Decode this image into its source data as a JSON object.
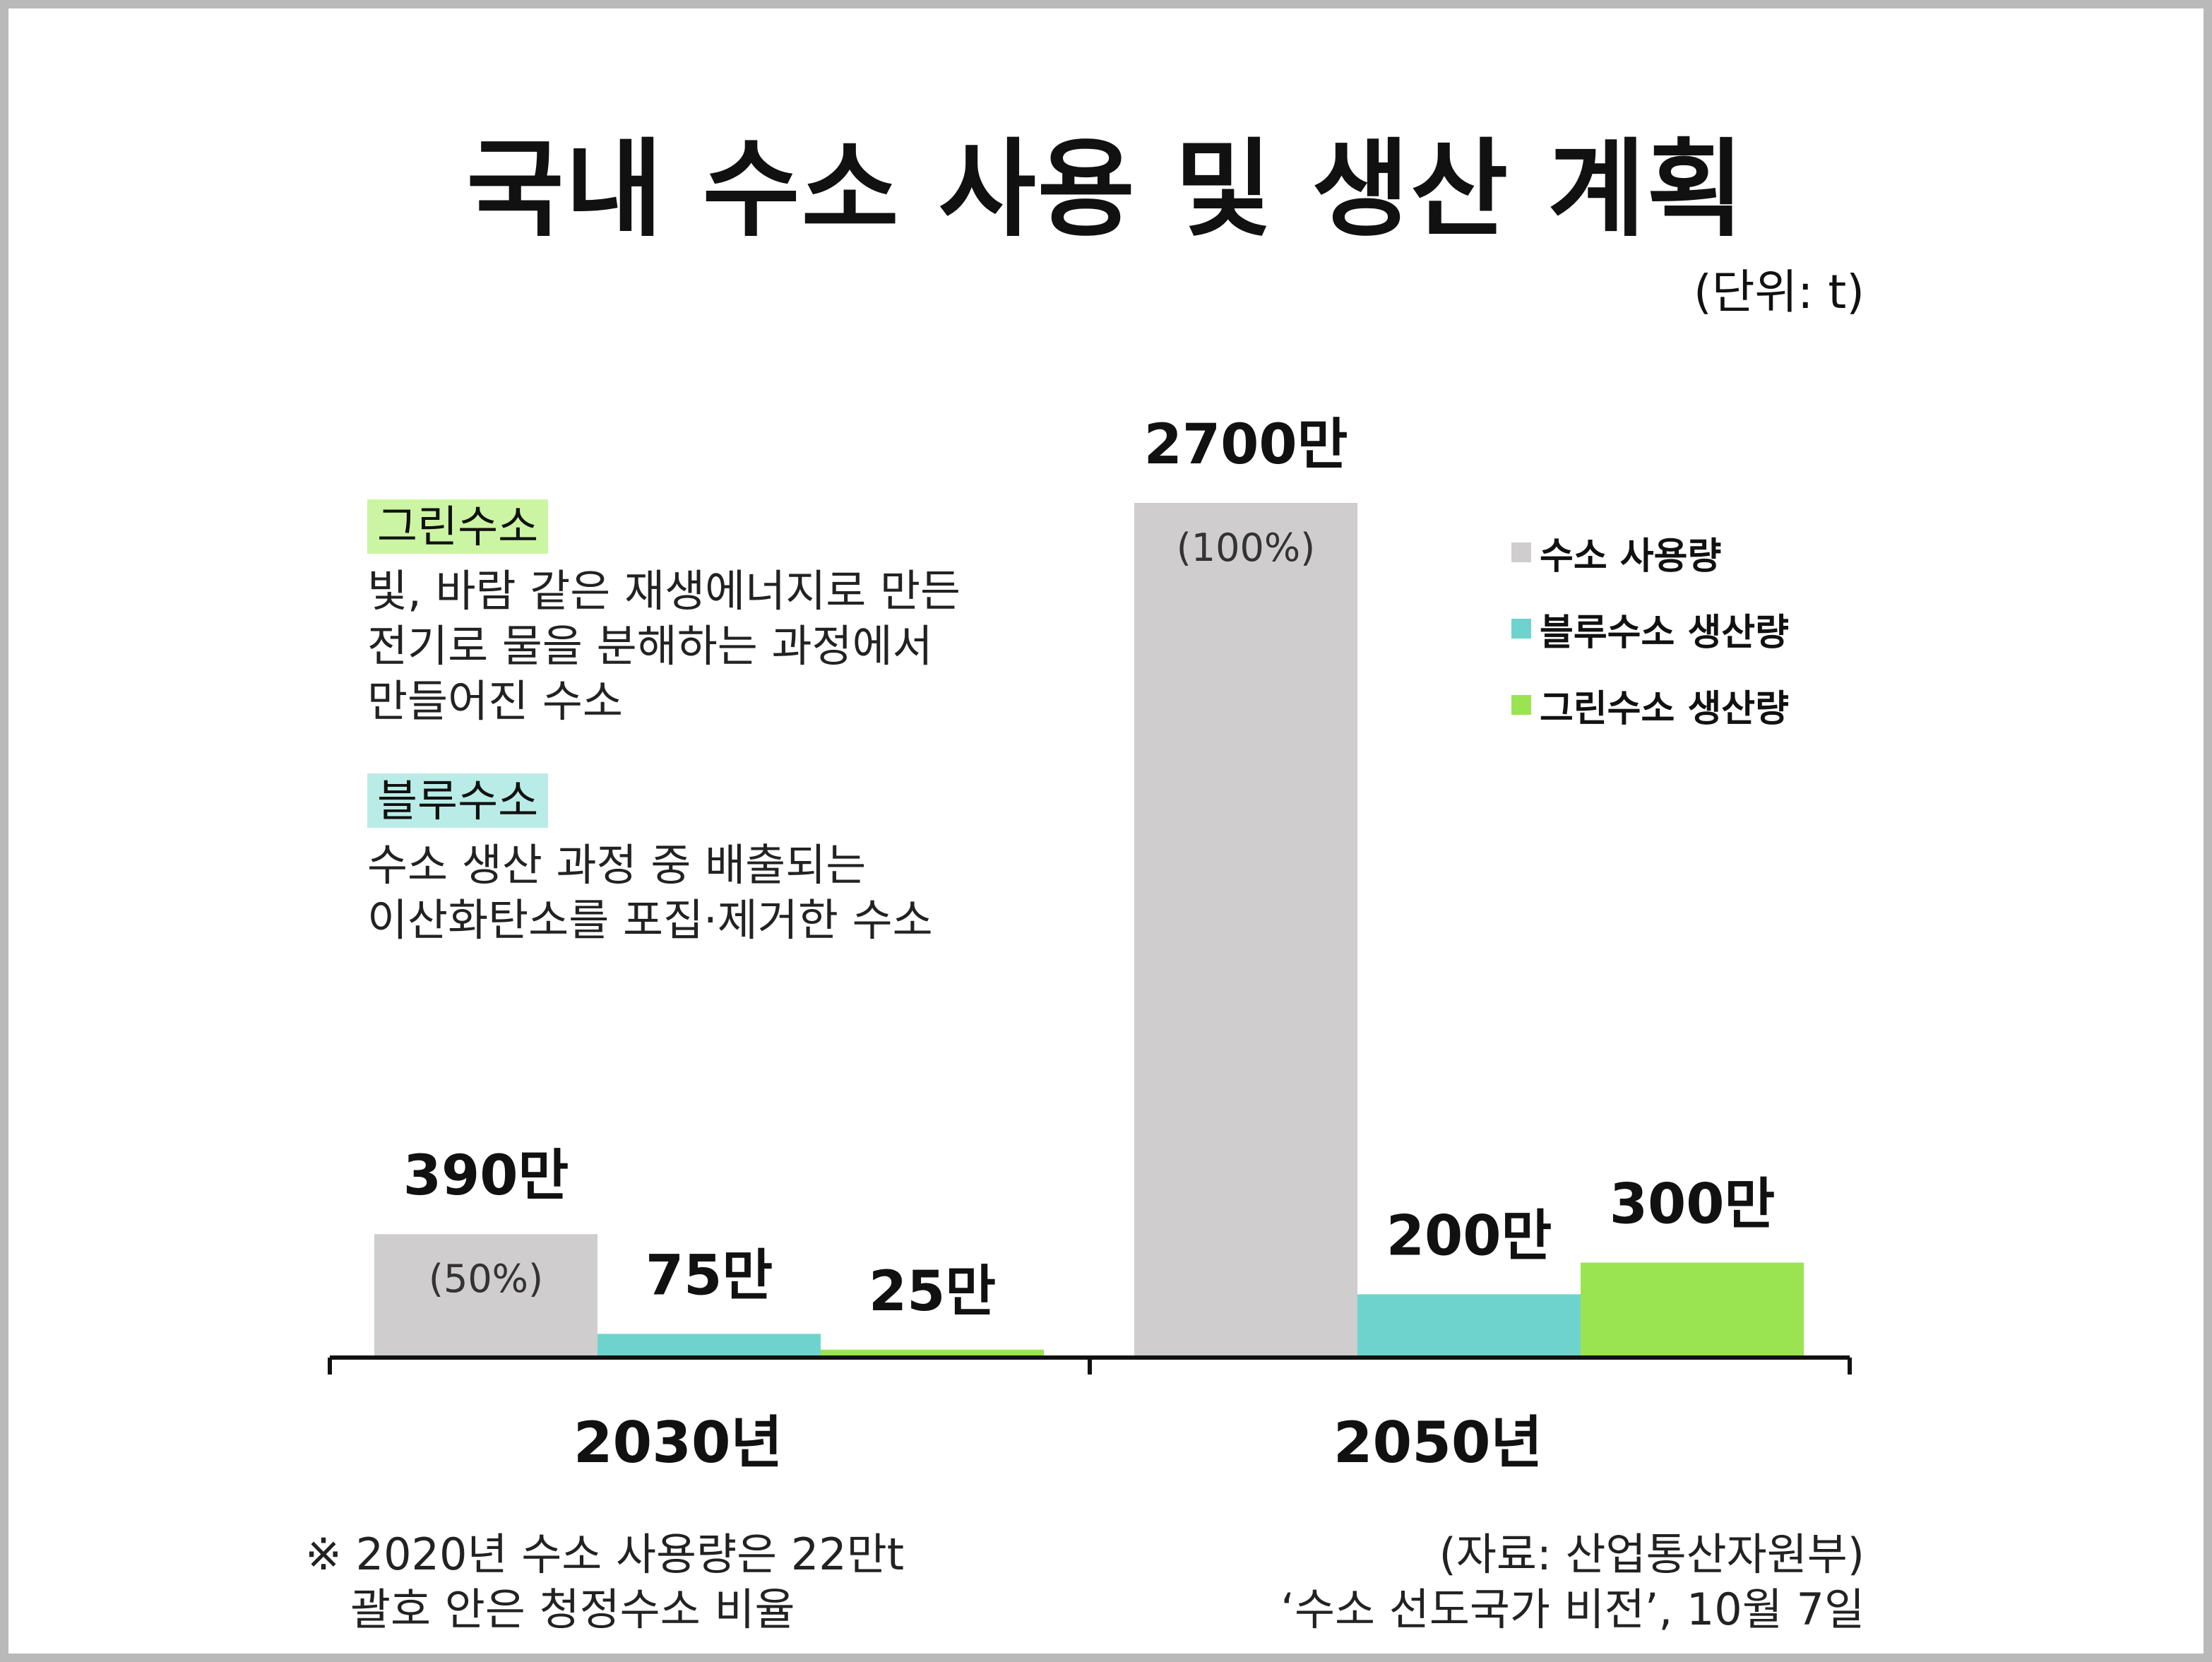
{
  "title": "국내 수소 사용 및 생산 계획",
  "unit": "(단위: t)",
  "notes": [
    {
      "tag": "그린수소",
      "tag_color": "#ccf5a3",
      "lines": [
        "빛, 바람 같은 재생에너지로 만든",
        "전기로 물을 분해하는 과정에서",
        "만들어진 수소"
      ]
    },
    {
      "tag": "블루수소",
      "tag_color": "#b9ece6",
      "lines": [
        "수소 생산 과정 중 배출되는",
        "이산화탄소를 포집·제거한 수소"
      ]
    }
  ],
  "footnote": {
    "lines": [
      "※ 2020년 수소 사용량은 22만t",
      "괄호 안은 청정수소 비율"
    ]
  },
  "source": {
    "lines": [
      "(자료: 산업통산자원부)",
      "‘수소 선도국가 비전’, 10월 7일"
    ]
  },
  "chart_data": {
    "type": "bar",
    "categories": [
      "2030년",
      "2050년"
    ],
    "series": [
      {
        "name": "수소 사용량",
        "color": "#cfcdce",
        "values": [
          3900000,
          27000000
        ],
        "value_labels": [
          "390만",
          "2700만"
        ],
        "inner_labels": [
          "(50%)",
          "(100%)"
        ]
      },
      {
        "name": "블루수소 생산량",
        "color": "#6fd3cd",
        "values": [
          750000,
          2000000
        ],
        "value_labels": [
          "75만",
          "200만"
        ],
        "inner_labels": [
          "",
          ""
        ]
      },
      {
        "name": "그린수소 생산량",
        "color": "#9be451",
        "values": [
          250000,
          3000000
        ],
        "value_labels": [
          "25만",
          "300만"
        ],
        "inner_labels": [
          "",
          ""
        ]
      }
    ],
    "legend_position": "top-right",
    "grid": false
  }
}
